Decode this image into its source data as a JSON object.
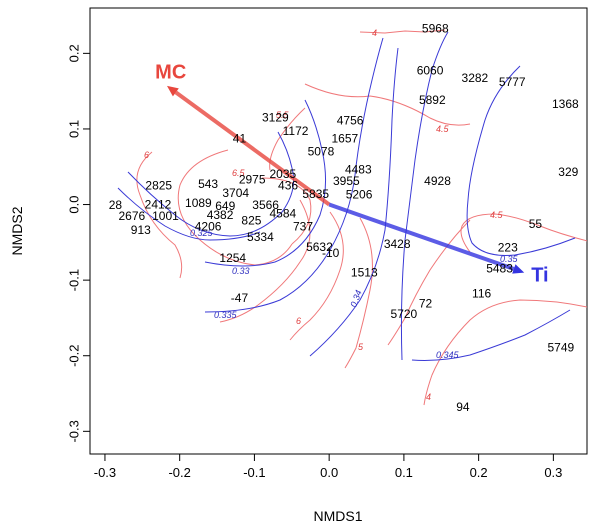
{
  "chart_data": {
    "type": "scatter",
    "title": "",
    "xlabel": "NMDS1",
    "ylabel": "NMDS2",
    "xlim": [
      -0.32,
      0.345
    ],
    "ylim": [
      -0.33,
      0.26
    ],
    "xticks": [
      "-0.3",
      "-0.2",
      "-0.1",
      "0.0",
      "0.1",
      "0.2",
      "0.3"
    ],
    "yticks": [
      "-0.3",
      "-0.2",
      "-0.1",
      "0.0",
      "0.1",
      "0.2"
    ],
    "points": [
      {
        "label": "5968",
        "x": 0.142,
        "y": 0.232
      },
      {
        "label": "6060",
        "x": 0.135,
        "y": 0.176
      },
      {
        "label": "3282",
        "x": 0.195,
        "y": 0.166
      },
      {
        "label": "5777",
        "x": 0.245,
        "y": 0.161
      },
      {
        "label": "5892",
        "x": 0.138,
        "y": 0.137
      },
      {
        "label": "1368",
        "x": 0.316,
        "y": 0.132
      },
      {
        "label": "3129",
        "x": -0.072,
        "y": 0.114
      },
      {
        "label": "4756",
        "x": 0.028,
        "y": 0.11
      },
      {
        "label": "1172",
        "x": -0.045,
        "y": 0.096
      },
      {
        "label": "1657",
        "x": 0.021,
        "y": 0.086
      },
      {
        "label": "41",
        "x": -0.12,
        "y": 0.086
      },
      {
        "label": "5078",
        "x": -0.011,
        "y": 0.069
      },
      {
        "label": "4483",
        "x": 0.039,
        "y": 0.045
      },
      {
        "label": "2035",
        "x": -0.062,
        "y": 0.039
      },
      {
        "label": "2975",
        "x": -0.103,
        "y": 0.032
      },
      {
        "label": "3955",
        "x": 0.023,
        "y": 0.03
      },
      {
        "label": "4928",
        "x": 0.145,
        "y": 0.03
      },
      {
        "label": "329",
        "x": 0.32,
        "y": 0.042
      },
      {
        "label": "543",
        "x": -0.162,
        "y": 0.026
      },
      {
        "label": "2825",
        "x": -0.228,
        "y": 0.024
      },
      {
        "label": "436",
        "x": -0.055,
        "y": 0.024
      },
      {
        "label": "3704",
        "x": -0.125,
        "y": 0.014
      },
      {
        "label": "5835",
        "x": -0.018,
        "y": 0.013
      },
      {
        "label": "5206",
        "x": 0.04,
        "y": 0.012
      },
      {
        "label": "1089",
        "x": -0.175,
        "y": 0.001
      },
      {
        "label": "2412",
        "x": -0.229,
        "y": -0.001
      },
      {
        "label": "649",
        "x": -0.139,
        "y": -0.003
      },
      {
        "label": "3566",
        "x": -0.085,
        "y": -0.002
      },
      {
        "label": "28",
        "x": -0.286,
        "y": -0.002
      },
      {
        "label": "4382",
        "x": -0.146,
        "y": -0.015
      },
      {
        "label": "4584",
        "x": -0.062,
        "y": -0.013
      },
      {
        "label": "825",
        "x": -0.104,
        "y": -0.022
      },
      {
        "label": "2676",
        "x": -0.264,
        "y": -0.016
      },
      {
        "label": "1001",
        "x": -0.219,
        "y": -0.016
      },
      {
        "label": "4206",
        "x": -0.162,
        "y": -0.03
      },
      {
        "label": "737",
        "x": -0.035,
        "y": -0.03
      },
      {
        "label": "913",
        "x": -0.252,
        "y": -0.035
      },
      {
        "label": "5334",
        "x": -0.092,
        "y": -0.044
      },
      {
        "label": "3428",
        "x": 0.091,
        "y": -0.053
      },
      {
        "label": "5632",
        "x": -0.013,
        "y": -0.057
      },
      {
        "label": "223",
        "x": 0.239,
        "y": -0.058
      },
      {
        "label": "-10",
        "x": 0.002,
        "y": -0.065
      },
      {
        "label": "1254",
        "x": -0.129,
        "y": -0.072
      },
      {
        "label": "5483",
        "x": 0.228,
        "y": -0.086
      },
      {
        "label": "1513",
        "x": 0.047,
        "y": -0.091
      },
      {
        "label": "55",
        "x": 0.276,
        "y": -0.027
      },
      {
        "label": "116",
        "x": 0.204,
        "y": -0.119
      },
      {
        "label": "-47",
        "x": -0.12,
        "y": -0.125
      },
      {
        "label": "72",
        "x": 0.129,
        "y": -0.132
      },
      {
        "label": "5720",
        "x": 0.1,
        "y": -0.146
      },
      {
        "label": "5749",
        "x": 0.31,
        "y": -0.19
      },
      {
        "label": "94",
        "x": 0.179,
        "y": -0.269
      }
    ],
    "vectors": [
      {
        "name": "MC",
        "x": -0.217,
        "y": 0.157,
        "color": "#e8473e",
        "label_x": -0.212,
        "label_y": 0.174
      },
      {
        "name": "Ti",
        "x": 0.261,
        "y": -0.09,
        "color": "#3434e0",
        "label_x": 0.282,
        "label_y": -0.095
      }
    ],
    "contour_labels_red": [
      "4",
      "4.5",
      "5.5",
      "6",
      "6.5",
      "4.5",
      "6",
      "5",
      "4"
    ],
    "contour_labels_blue": [
      "0.325",
      "0.33",
      "0.335",
      "0.34",
      "0.35",
      "0.345"
    ],
    "colors": {
      "red_contours": "#f0787a",
      "blue_contours": "#3a3ad6",
      "mc_vector": "#e8473e",
      "ti_vector": "#3434e0"
    }
  }
}
